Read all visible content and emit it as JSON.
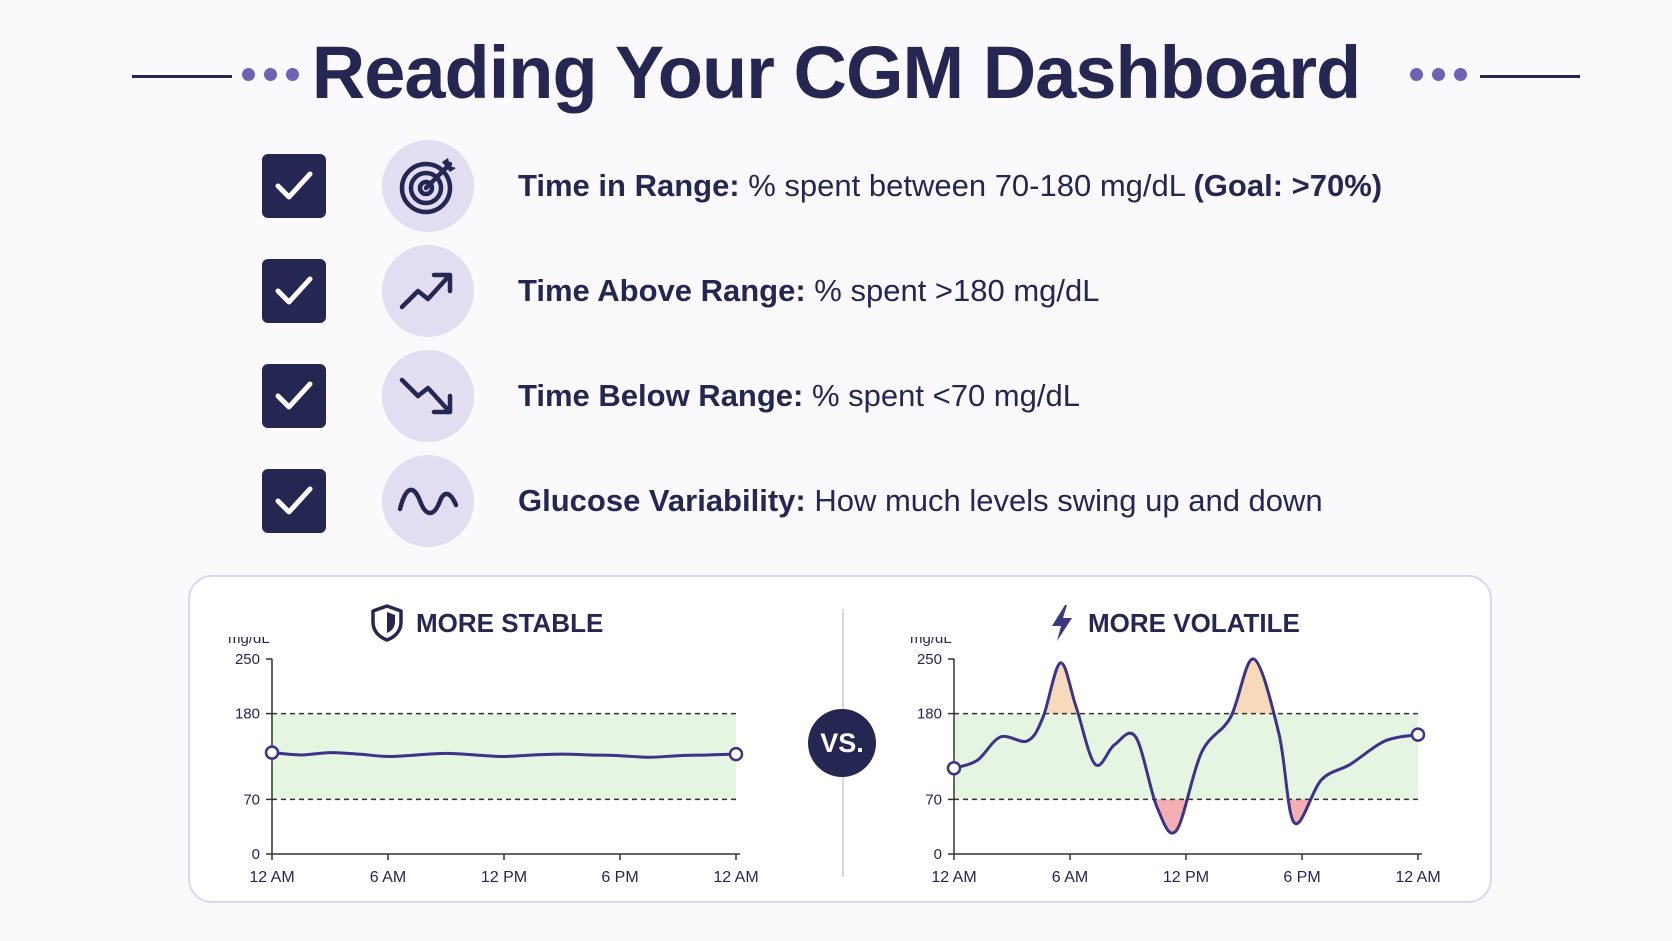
{
  "title": "Reading Your CGM Dashboard",
  "items": [
    {
      "label": "Time in Range:",
      "text": " % spent between 70-180 mg/dL ",
      "goal": "(Goal: >70%)",
      "icon": "target-icon"
    },
    {
      "label": "Time Above Range:",
      "text": " % spent >180 mg/dL",
      "goal": "",
      "icon": "trend-up-icon"
    },
    {
      "label": "Time Below Range:",
      "text": " % spent <70 mg/dL",
      "goal": "",
      "icon": "trend-down-icon"
    },
    {
      "label": "Glucose Variability:",
      "text": " How much levels swing up and down",
      "goal": "",
      "icon": "wave-icon"
    }
  ],
  "vs_label": "VS.",
  "colors": {
    "navy": "#262652",
    "accent": "#7062b3",
    "range_fill": "#e6f4e2",
    "high_fill": "#f8d9b9",
    "low_fill": "#f5aeb3",
    "icon_bg": "#e2def1"
  },
  "chart_data": [
    {
      "type": "line",
      "title": "MORE STABLE",
      "title_icon": "shield-icon",
      "ylabel": "mg/dL",
      "yticks": [
        0,
        70,
        180,
        250
      ],
      "ylim": [
        0,
        250
      ],
      "target_range": [
        70,
        180
      ],
      "xticks": [
        "12 AM",
        "6 AM",
        "12 PM",
        "6 PM",
        "12 AM"
      ],
      "x_hours": [
        0,
        1.5,
        3,
        4.5,
        6,
        7.5,
        9,
        10.5,
        12,
        13.5,
        15,
        16.5,
        18,
        19.5,
        21,
        22.5,
        24
      ],
      "values": [
        130,
        127,
        130,
        128,
        125,
        127,
        129,
        127,
        125,
        127,
        128,
        127,
        126,
        124,
        126,
        127,
        128
      ]
    },
    {
      "type": "line",
      "title": "MORE VOLATILE",
      "title_icon": "lightning-icon",
      "ylabel": "mg/dL",
      "yticks": [
        0,
        70,
        180,
        250
      ],
      "ylim": [
        0,
        250
      ],
      "target_range": [
        70,
        180
      ],
      "xticks": [
        "12 AM",
        "6 AM",
        "12 PM",
        "6 PM",
        "12 AM"
      ],
      "x_hours": [
        0,
        1.2,
        2.4,
        3.8,
        4.6,
        5.5,
        6.3,
        7.3,
        8.3,
        9.4,
        10.5,
        11.5,
        12.8,
        14.3,
        15.5,
        16.8,
        17.6,
        19,
        20.5,
        22.3,
        24
      ],
      "values": [
        110,
        120,
        150,
        145,
        175,
        245,
        190,
        115,
        140,
        150,
        60,
        30,
        130,
        175,
        250,
        155,
        40,
        95,
        115,
        145,
        153
      ]
    }
  ]
}
